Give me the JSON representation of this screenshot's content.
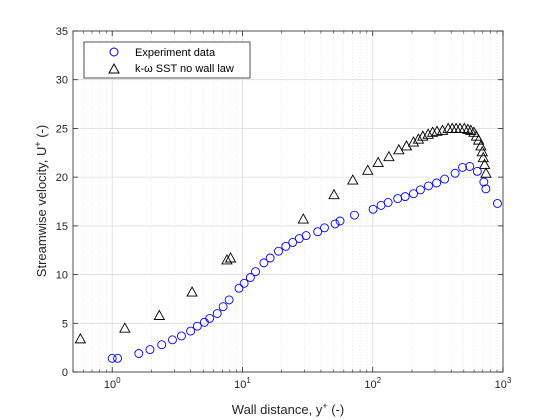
{
  "chart_data": {
    "type": "scatter",
    "title": "",
    "xlabel": {
      "main": "Wall distance, y",
      "sup": "+",
      "suffix": " (-)"
    },
    "ylabel": {
      "main": "Streamwise velocity, U",
      "sup": "+",
      "suffix": " (-)"
    },
    "xscale": "log",
    "xlim": [
      0.5,
      1000
    ],
    "ylim": [
      0,
      35
    ],
    "xticks": [
      {
        "value": 1,
        "base": "10",
        "exp": "0"
      },
      {
        "value": 10,
        "base": "10",
        "exp": "1"
      },
      {
        "value": 100,
        "base": "10",
        "exp": "2"
      },
      {
        "value": 1000,
        "base": "10",
        "exp": "3"
      }
    ],
    "yticks": [
      "0",
      "5",
      "10",
      "15",
      "20",
      "25",
      "30",
      "35"
    ],
    "grid": true,
    "legend_position": "top-left",
    "series": [
      {
        "name": "Experiment data",
        "marker": "circle",
        "color": "#0000ff",
        "points": [
          [
            1.0,
            1.4
          ],
          [
            1.1,
            1.4
          ],
          [
            1.6,
            1.9
          ],
          [
            1.95,
            2.3
          ],
          [
            2.4,
            2.8
          ],
          [
            2.9,
            3.3
          ],
          [
            3.4,
            3.7
          ],
          [
            4.0,
            4.2
          ],
          [
            4.5,
            4.7
          ],
          [
            5.1,
            5.1
          ],
          [
            5.6,
            5.5
          ],
          [
            6.4,
            6.0
          ],
          [
            7.1,
            6.7
          ],
          [
            7.9,
            7.4
          ],
          [
            9.4,
            8.6
          ],
          [
            10.3,
            9.1
          ],
          [
            11.5,
            9.7
          ],
          [
            12.6,
            10.3
          ],
          [
            14.6,
            11.2
          ],
          [
            16.3,
            11.7
          ],
          [
            18.9,
            12.4
          ],
          [
            21.5,
            12.9
          ],
          [
            24.3,
            13.3
          ],
          [
            27.3,
            13.7
          ],
          [
            30.8,
            14.0
          ],
          [
            37.8,
            14.4
          ],
          [
            42.6,
            14.8
          ],
          [
            51.4,
            15.2
          ],
          [
            56.1,
            15.5
          ],
          [
            72.4,
            16.1
          ],
          [
            100.6,
            16.7
          ],
          [
            115.9,
            17.1
          ],
          [
            131.3,
            17.4
          ],
          [
            155.5,
            17.8
          ],
          [
            177.3,
            18.0
          ],
          [
            205.5,
            18.3
          ],
          [
            232.4,
            18.7
          ],
          [
            268.0,
            19.1
          ],
          [
            309.1,
            19.4
          ],
          [
            356.4,
            19.8
          ],
          [
            428.9,
            20.4
          ],
          [
            488.8,
            21.0
          ],
          [
            555.2,
            21.1
          ],
          [
            635.4,
            20.6
          ],
          [
            712.7,
            19.5
          ],
          [
            738.6,
            18.8
          ],
          [
            906.6,
            17.3
          ]
        ]
      },
      {
        "name": "k-ω SST no wall law",
        "marker": "triangle",
        "color": "#000000",
        "points": [
          [
            0.57,
            3.4
          ],
          [
            1.25,
            4.5
          ],
          [
            2.3,
            5.8
          ],
          [
            4.1,
            8.2
          ],
          [
            7.6,
            11.5
          ],
          [
            8.1,
            11.7
          ],
          [
            29.3,
            15.7
          ],
          [
            50.4,
            18.2
          ],
          [
            70.3,
            19.7
          ],
          [
            91.6,
            20.7
          ],
          [
            110.1,
            21.5
          ],
          [
            133.1,
            22.1
          ],
          [
            158.7,
            22.8
          ],
          [
            181.5,
            23.2
          ],
          [
            205.5,
            23.6
          ],
          [
            224.4,
            23.9
          ],
          [
            242.4,
            24.2
          ],
          [
            266.4,
            24.4
          ],
          [
            288.1,
            24.6
          ],
          [
            311.4,
            24.7
          ],
          [
            343.3,
            24.8
          ],
          [
            379.4,
            25.0
          ],
          [
            407.7,
            25.0
          ],
          [
            436.6,
            25.0
          ],
          [
            467.4,
            25.0
          ],
          [
            504.4,
            25.0
          ],
          [
            537.7,
            24.9
          ],
          [
            566.6,
            24.8
          ],
          [
            597.9,
            24.6
          ],
          [
            625.1,
            24.2
          ],
          [
            650.3,
            23.8
          ],
          [
            676.2,
            23.2
          ],
          [
            693.0,
            22.6
          ],
          [
            705.4,
            22.0
          ],
          [
            722.1,
            21.3
          ],
          [
            740.0,
            20.4
          ]
        ]
      }
    ]
  }
}
